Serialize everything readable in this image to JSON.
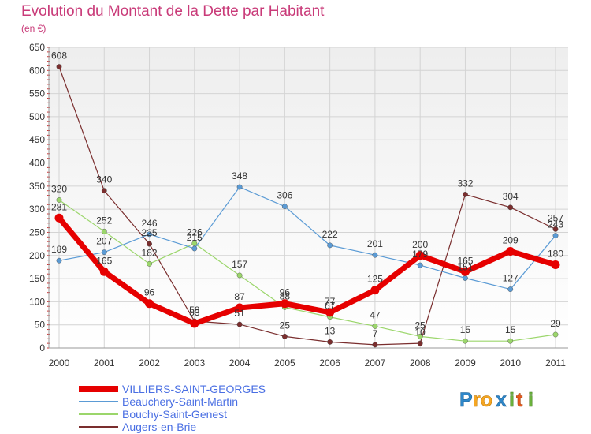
{
  "chart_data": {
    "type": "line",
    "title": "Evolution du Montant de la Dette par Habitant",
    "subtitle": "(en €)",
    "xlabel": "",
    "ylabel": "",
    "x": [
      "2000",
      "2001",
      "2002",
      "2003",
      "2004",
      "2005",
      "2006",
      "2007",
      "2008",
      "2009",
      "2010",
      "2011"
    ],
    "ylim": [
      0,
      650
    ],
    "yticks": [
      0,
      50,
      100,
      150,
      200,
      250,
      300,
      350,
      400,
      450,
      500,
      550,
      600,
      650
    ],
    "grid": true,
    "legend_position": "bottom-left",
    "series": [
      {
        "name": "VILLIERS-SAINT-GEORGES",
        "color": "#e60000",
        "values": [
          281,
          165,
          96,
          53,
          87,
          96,
          77,
          125,
          200,
          165,
          209,
          180
        ]
      },
      {
        "name": "Beauchery-Saint-Martin",
        "color": "#5b9bd5",
        "values": [
          189,
          207,
          246,
          215,
          348,
          306,
          222,
          201,
          179,
          151,
          127,
          243
        ]
      },
      {
        "name": "Bouchy-Saint-Genest",
        "color": "#9bd66b",
        "values": [
          320,
          252,
          182,
          226,
          157,
          88,
          67,
          47,
          25,
          15,
          15,
          29
        ]
      },
      {
        "name": "Augers-en-Brie",
        "color": "#7a2e2e",
        "values": [
          608,
          340,
          225,
          58,
          51,
          25,
          13,
          7,
          10,
          332,
          304,
          257
        ]
      }
    ]
  },
  "branding": {
    "logo_text": "Proxiti"
  }
}
